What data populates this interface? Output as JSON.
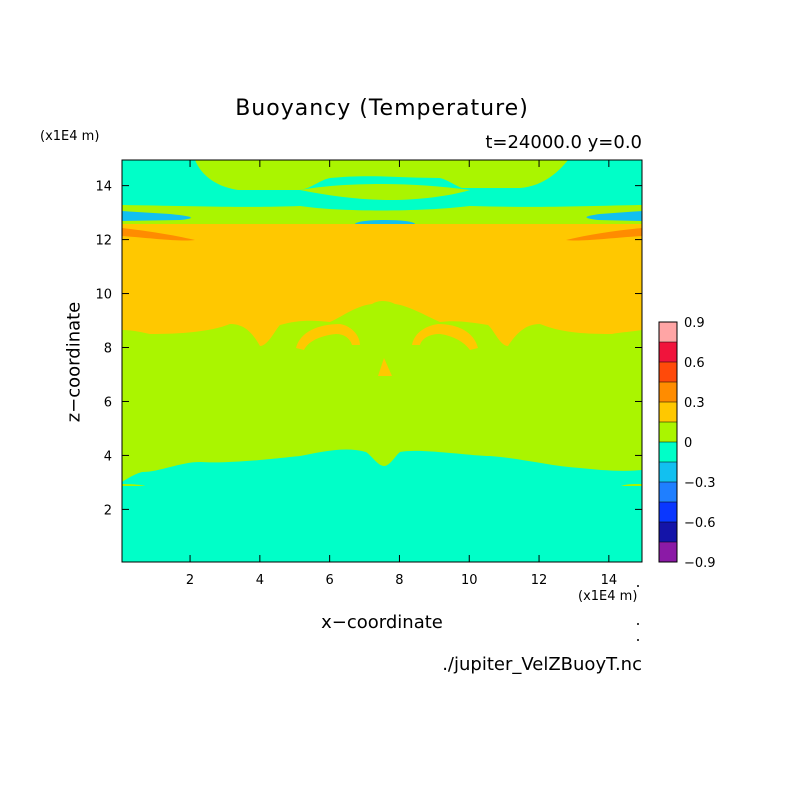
{
  "chart_data": {
    "type": "heatmap",
    "title": "Buoyancy (Temperature)",
    "subtitle": "t=24000.0 y=0.0",
    "xlabel": "x−coordinate",
    "ylabel": "z−coordinate",
    "x_units_label": "(x1E4 m)",
    "y_units_label": "(x1E4 m)",
    "source_label": "./jupiter_VelZBuoyT.nc",
    "xlim": [
      0.05,
      14.95
    ],
    "ylim": [
      0.05,
      14.95
    ],
    "x_ticks": [
      2,
      4,
      6,
      8,
      10,
      12,
      14
    ],
    "y_ticks": [
      2,
      4,
      6,
      8,
      10,
      12,
      14
    ],
    "x_tick_labels": [
      "2",
      "4",
      "6",
      "8",
      "10",
      "12",
      "14"
    ],
    "y_tick_labels": [
      "2",
      "4",
      "6",
      "8",
      "10",
      "12",
      "14"
    ],
    "colorbar": {
      "levels": [
        -0.9,
        -0.75,
        -0.6,
        -0.45,
        -0.3,
        -0.15,
        0,
        0.15,
        0.3,
        0.45,
        0.6,
        0.75,
        0.9
      ],
      "colors": [
        "#8b1aa6",
        "#1414a8",
        "#0a37ff",
        "#1f7fff",
        "#12c0f0",
        "#00ffc8",
        "#aaf500",
        "#ffc800",
        "#ff8c00",
        "#ff4a0a",
        "#f0143c",
        "#ffa5a5"
      ],
      "tick_values": [
        -0.9,
        -0.6,
        -0.3,
        0,
        0.3,
        0.6,
        0.9
      ],
      "tick_labels": [
        "−0.9",
        "−0.6",
        "−0.3",
        "0",
        "0.3",
        "0.6",
        "0.9"
      ]
    },
    "bands": [
      {
        "z_min": 0.05,
        "z_max": 3.8,
        "value_class": "-0.15 to 0"
      },
      {
        "z_min": 3.8,
        "z_max": 8.6,
        "value_class": "0 to 0.15"
      },
      {
        "z_min": 8.6,
        "z_max": 12.2,
        "value_class": "0.15 to 0.3"
      },
      {
        "z_min": 12.2,
        "z_max": 12.5,
        "value_class": "0.3 to 0.45"
      },
      {
        "z_min": 12.5,
        "z_max": 13.0,
        "value_class": "-0.15 to 0"
      },
      {
        "z_min": 13.0,
        "z_max": 13.4,
        "value_class": "-0.3 to -0.15"
      },
      {
        "z_min": 13.4,
        "z_max": 14.95,
        "value_class": "-0.15 to 0 with 0 to 0.15 cap"
      }
    ]
  }
}
